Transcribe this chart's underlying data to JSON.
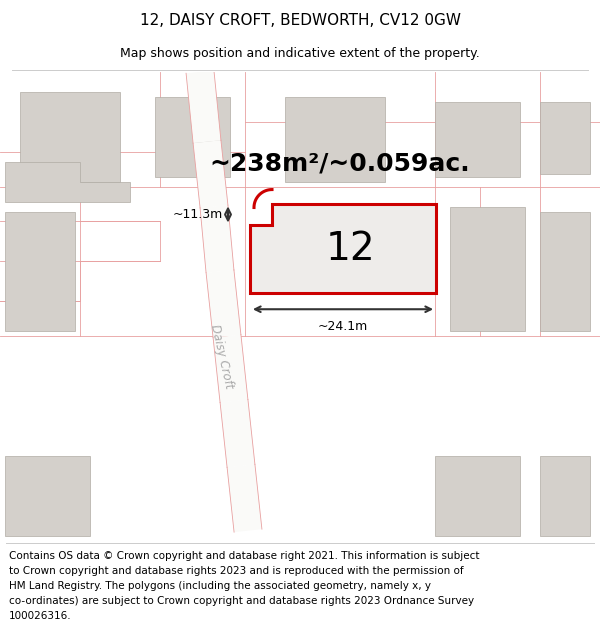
{
  "title": "12, DAISY CROFT, BEDWORTH, CV12 0GW",
  "subtitle": "Map shows position and indicative extent of the property.",
  "area_text": "~238m²/~0.059ac.",
  "number_label": "12",
  "width_label": "~24.1m",
  "height_label": "~11.3m",
  "road_label": "Daisy Croft",
  "footer_lines": [
    "Contains OS data © Crown copyright and database right 2021. This information is subject",
    "to Crown copyright and database rights 2023 and is reproduced with the permission of",
    "HM Land Registry. The polygons (including the associated geometry, namely x, y",
    "co-ordinates) are subject to Crown copyright and database rights 2023 Ordnance Survey",
    "100026316."
  ],
  "bg_color": "#f2f0eb",
  "building_color": "#d4d0cb",
  "plot_fill": "#eeecea",
  "plot_edge_color": "#cc0000",
  "other_edge_color": "#e8a0a0",
  "road_fill": "#fafaf8",
  "title_fontsize": 11,
  "subtitle_fontsize": 9,
  "area_fontsize": 18,
  "number_fontsize": 28,
  "label_fontsize": 9,
  "footer_fontsize": 7.5
}
